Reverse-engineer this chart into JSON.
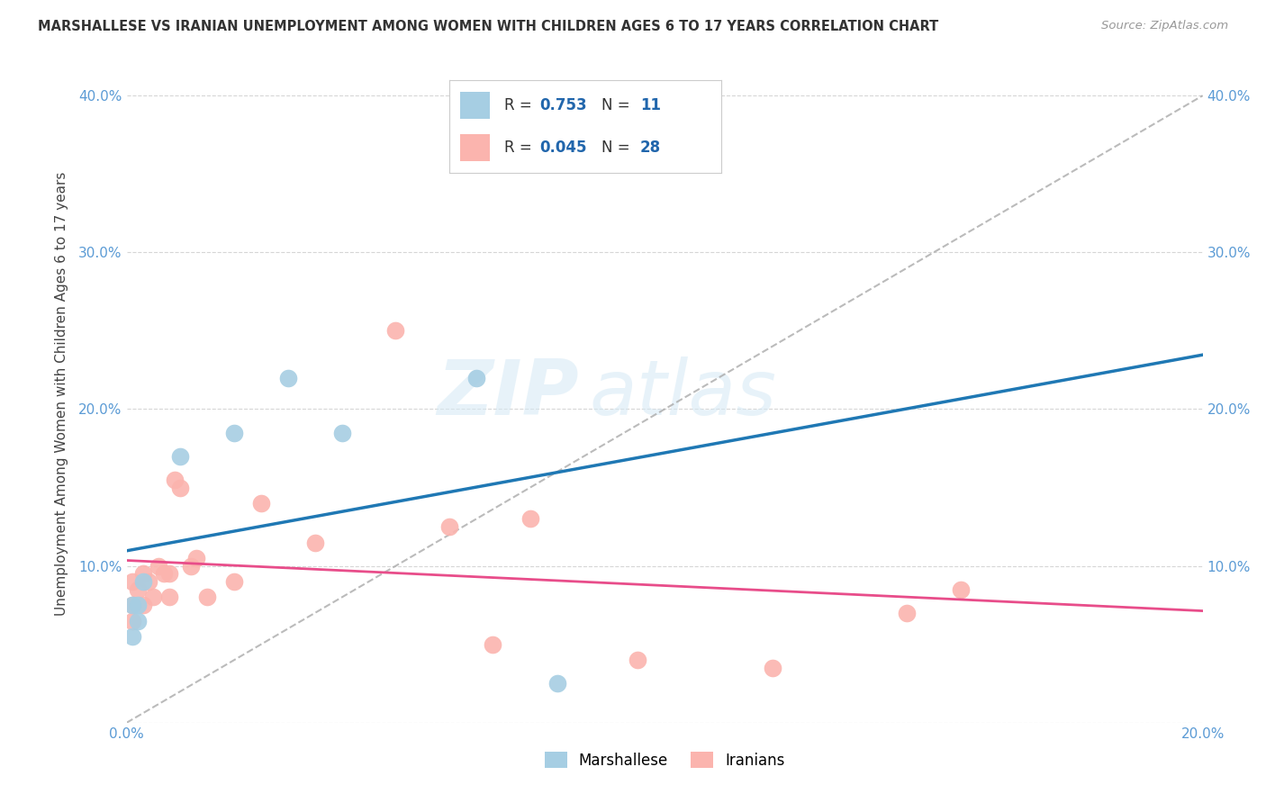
{
  "title": "MARSHALLESE VS IRANIAN UNEMPLOYMENT AMONG WOMEN WITH CHILDREN AGES 6 TO 17 YEARS CORRELATION CHART",
  "source": "Source: ZipAtlas.com",
  "ylabel": "Unemployment Among Women with Children Ages 6 to 17 years",
  "xlim": [
    0.0,
    0.2
  ],
  "ylim": [
    0.0,
    0.42
  ],
  "xticks": [
    0.0,
    0.05,
    0.1,
    0.15,
    0.2
  ],
  "yticks": [
    0.0,
    0.1,
    0.2,
    0.3,
    0.4
  ],
  "xtick_labels": [
    "0.0%",
    "",
    "",
    "",
    "20.0%"
  ],
  "ytick_labels": [
    "",
    "10.0%",
    "20.0%",
    "30.0%",
    "40.0%"
  ],
  "right_ytick_labels": [
    "",
    "10.0%",
    "20.0%",
    "30.0%",
    "40.0%"
  ],
  "marshallese_x": [
    0.001,
    0.001,
    0.002,
    0.002,
    0.003,
    0.01,
    0.02,
    0.03,
    0.04,
    0.065,
    0.08
  ],
  "marshallese_y": [
    0.055,
    0.075,
    0.075,
    0.065,
    0.09,
    0.17,
    0.185,
    0.22,
    0.185,
    0.22,
    0.025
  ],
  "iranian_x": [
    0.001,
    0.001,
    0.001,
    0.002,
    0.003,
    0.003,
    0.004,
    0.005,
    0.006,
    0.007,
    0.008,
    0.008,
    0.009,
    0.01,
    0.012,
    0.013,
    0.015,
    0.02,
    0.025,
    0.035,
    0.05,
    0.06,
    0.068,
    0.075,
    0.095,
    0.12,
    0.145,
    0.155
  ],
  "iranian_y": [
    0.09,
    0.075,
    0.065,
    0.085,
    0.095,
    0.075,
    0.09,
    0.08,
    0.1,
    0.095,
    0.08,
    0.095,
    0.155,
    0.15,
    0.1,
    0.105,
    0.08,
    0.09,
    0.14,
    0.115,
    0.25,
    0.125,
    0.05,
    0.13,
    0.04,
    0.035,
    0.07,
    0.085
  ],
  "marshallese_color": "#a6cee3",
  "iranian_color": "#fbb4ae",
  "trend_color_marsh": "#1f78b4",
  "trend_color_iran": "#e84d8a",
  "dashed_line_color": "#aaaaaa",
  "legend_R_marsh": "0.753",
  "legend_N_marsh": "11",
  "legend_R_iran": "0.045",
  "legend_N_iran": "28",
  "watermark_zip": "ZIP",
  "watermark_atlas": "atlas",
  "legend_label_marsh": "Marshallese",
  "legend_label_iran": "Iranians",
  "axis_color": "#5b9bd5",
  "value_color": "#2166ac",
  "background_color": "#ffffff",
  "grid_color": "#cccccc"
}
